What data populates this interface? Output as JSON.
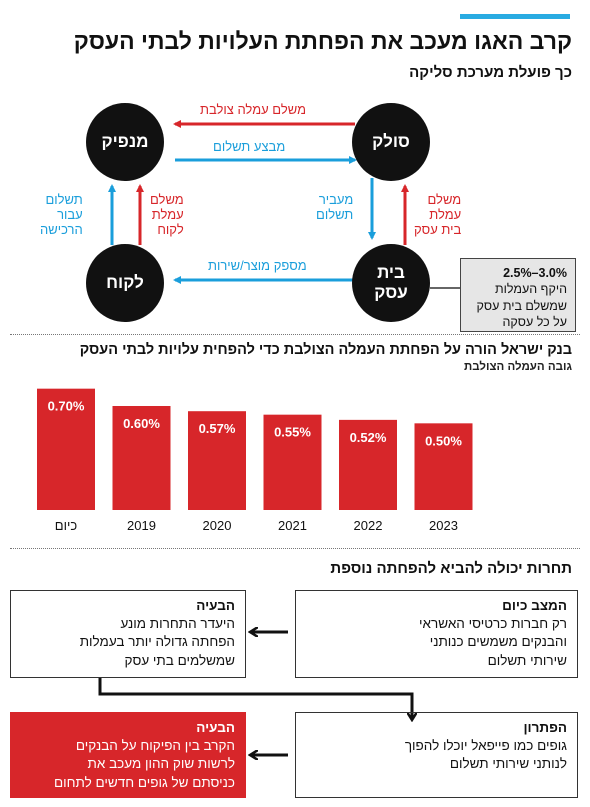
{
  "title": "קרב האגו מעכב את הפחתת העלויות לבתי העסק",
  "diagram": {
    "heading": "כך פועלת מערכת סליקה",
    "nodes": {
      "issuer": "מנפיק",
      "acquirer": "סולק",
      "customer": "לקוח",
      "merchant": "בית\nעסק"
    },
    "edges": {
      "interchange_fee": "משלם עמלה צולבת",
      "payment_execution": "מבצע תשלום",
      "customer_pays_fee": "משלם\nעמלת\nלקוח",
      "payment_for_purchase": "תשלום\nעבור\nהרכישה",
      "transfers_payment": "מעביר\nתשלום",
      "merchant_pays_fee": "משלם\nעמלת\nבית עסק",
      "provides_product": "מספק מוצר/שירות"
    },
    "fee_box": {
      "range": "2.5%–3.0%",
      "text": "היקף העמלות\nשמשלם בית עסק\nעל כל עסקה"
    }
  },
  "chart_section": {
    "heading": "בנק ישראל הורה על הפחתת העמלה הצולבת כדי להפחית עלויות לבתי העסק",
    "subheading": "גובה העמלה הצולבת"
  },
  "chart_data": {
    "type": "bar",
    "categories": [
      "כיום",
      "2019",
      "2020",
      "2021",
      "2022",
      "2023"
    ],
    "values": [
      0.7,
      0.6,
      0.57,
      0.55,
      0.52,
      0.5
    ],
    "value_labels": [
      "0.70%",
      "0.60%",
      "0.57%",
      "0.55%",
      "0.52%",
      "0.50%"
    ],
    "ylim": [
      0,
      0.75
    ],
    "bar_color": "#d7262a",
    "grid": false
  },
  "competition": {
    "heading": "תחרות יכולה להביא להפחתה נוספת",
    "current_state": {
      "title": "המצב כיום",
      "text": "רק חברות כרטיסי האשראי\nוהבנקים משמשים כנותני\nשירותי תשלום"
    },
    "problem1": {
      "title": "הבעיה",
      "text": "היעדר התחרות מונע\nהפחתה גדולה יותר בעמלות\nשמשלמים בתי עסק"
    },
    "solution": {
      "title": "הפתרון",
      "text": "גופים כמו פייפאל יוכלו להפוך\nלנותני שירותי תשלום"
    },
    "problem2": {
      "title": "הבעיה",
      "text": "הקרב בין הפיקוח על הבנקים\nלרשות שוק ההון מעכב את\nכניסתם של גופים חדשים לתחום"
    }
  },
  "colors": {
    "accent_blue": "#29abe2",
    "red": "#d7262a",
    "flow_blue": "#1a9edb",
    "node": "#111111"
  }
}
